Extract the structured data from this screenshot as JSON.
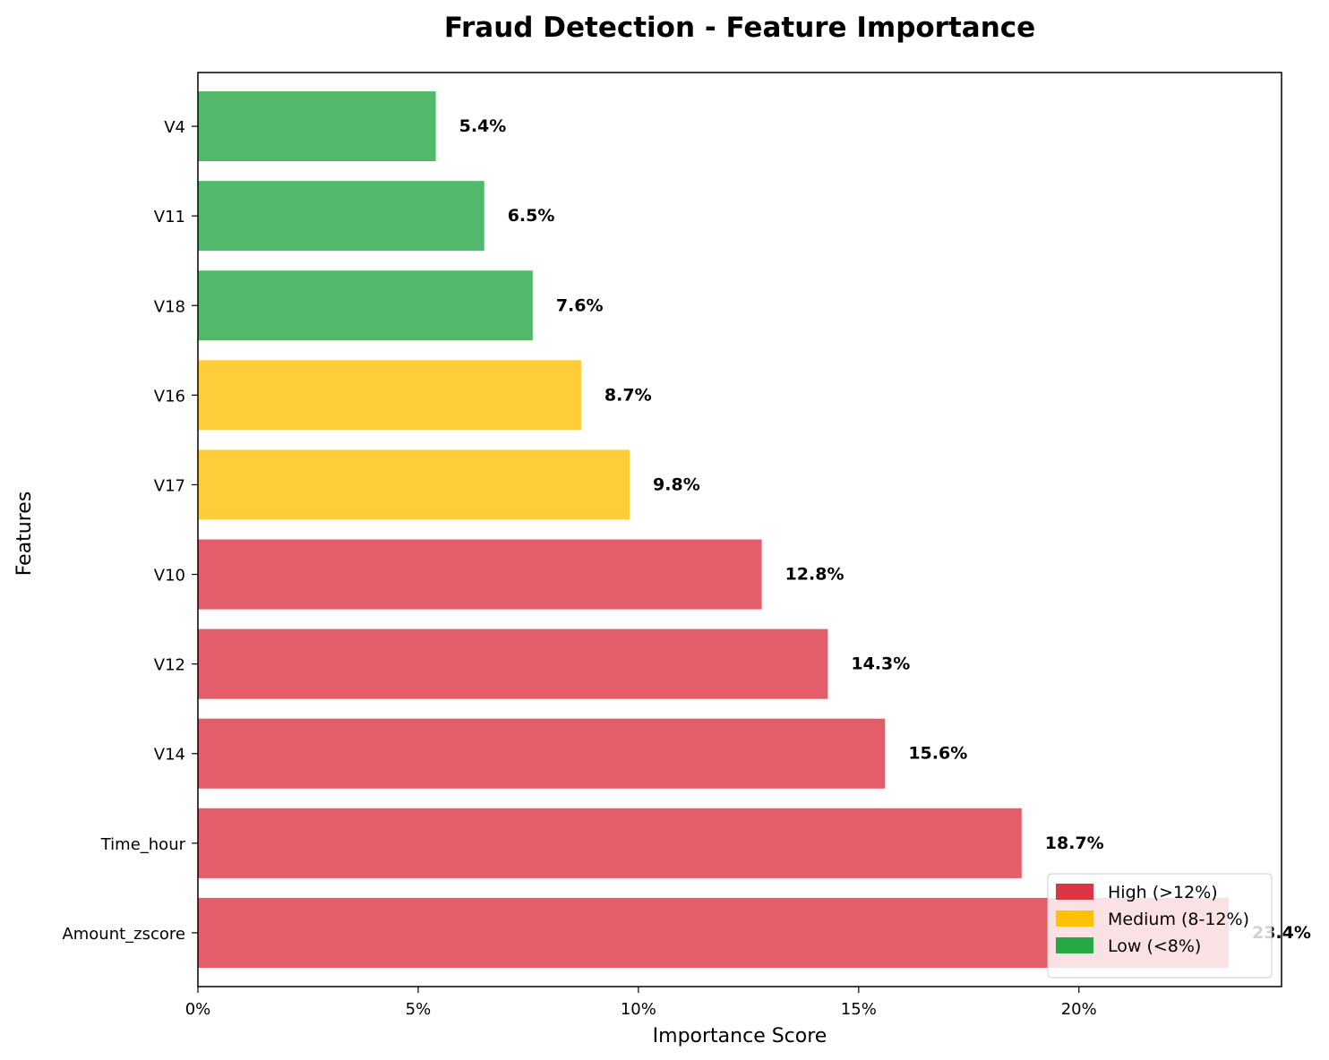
{
  "chart_data": {
    "type": "bar",
    "orientation": "horizontal",
    "title": "Fraud Detection - Feature Importance",
    "xlabel": "Importance Score",
    "ylabel": "Features",
    "categories": [
      "Amount_zscore",
      "Time_hour",
      "V14",
      "V12",
      "V10",
      "V17",
      "V16",
      "V18",
      "V11",
      "V4"
    ],
    "values": [
      23.4,
      18.7,
      15.6,
      14.3,
      12.8,
      9.8,
      8.7,
      7.6,
      6.5,
      5.4
    ],
    "value_labels": [
      "23.4%",
      "18.7%",
      "15.6%",
      "14.3%",
      "12.8%",
      "9.8%",
      "8.7%",
      "7.6%",
      "6.5%",
      "5.4%"
    ],
    "bar_groups": [
      "high",
      "high",
      "high",
      "high",
      "high",
      "medium",
      "medium",
      "low",
      "low",
      "low"
    ],
    "xlim": [
      0,
      24.6
    ],
    "xticks": [
      0,
      5,
      10,
      15,
      20
    ],
    "xtick_labels": [
      "0%",
      "5%",
      "10%",
      "15%",
      "20%"
    ],
    "grid": false,
    "legend_placement": "lower-right",
    "legend": [
      {
        "key": "high",
        "label": "High (>12%)",
        "color": "#dc3545"
      },
      {
        "key": "medium",
        "label": "Medium (8-12%)",
        "color": "#ffc107"
      },
      {
        "key": "low",
        "label": "Low (<8%)",
        "color": "#28a745"
      }
    ],
    "bar_colors": {
      "high": "#e35d6a",
      "medium": "#ffcd39",
      "low": "#53b96a"
    }
  }
}
